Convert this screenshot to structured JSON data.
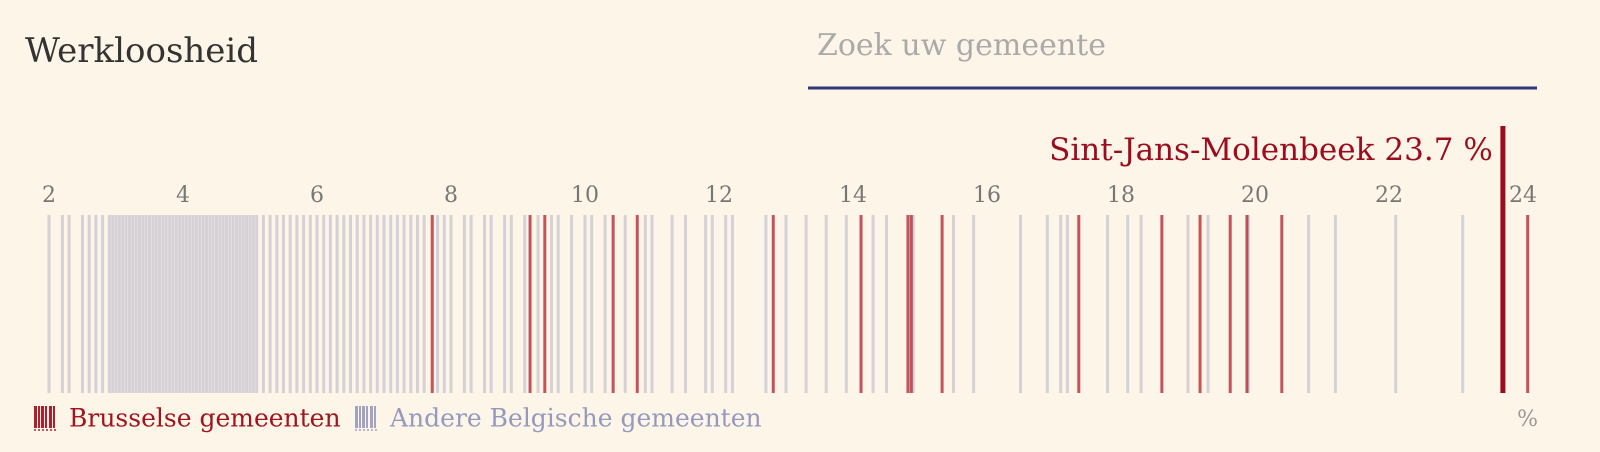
{
  "chart_data": {
    "type": "strip",
    "title": "Werkloosheid",
    "search_placeholder": "Zoek uw gemeente",
    "x_unit": "%",
    "xlim": [
      1.75,
      24.25
    ],
    "xticks": [
      2,
      4,
      6,
      8,
      10,
      12,
      14,
      16,
      18,
      20,
      22,
      24
    ],
    "highlight": {
      "name": "Sint-Jans-Molenbeek",
      "value": 23.7,
      "color": "#9b0d1e"
    },
    "series": [
      {
        "name": "Andere Belgische gemeenten",
        "color": "#7a7fb4",
        "values": [
          2.0,
          2.2,
          2.3,
          2.5,
          2.6,
          2.7,
          2.8,
          2.9,
          2.95,
          3.0,
          3.05,
          3.1,
          3.15,
          3.2,
          3.25,
          3.3,
          3.35,
          3.4,
          3.45,
          3.5,
          3.55,
          3.6,
          3.65,
          3.7,
          3.75,
          3.8,
          3.85,
          3.9,
          3.95,
          4.0,
          4.05,
          4.1,
          4.15,
          4.2,
          4.25,
          4.3,
          4.35,
          4.4,
          4.45,
          4.5,
          4.55,
          4.6,
          4.65,
          4.7,
          4.75,
          4.8,
          4.85,
          4.9,
          4.95,
          5.0,
          5.05,
          5.1,
          5.2,
          5.3,
          5.4,
          5.5,
          5.6,
          5.7,
          5.8,
          5.9,
          6.0,
          6.1,
          6.2,
          6.3,
          6.4,
          6.5,
          6.6,
          6.7,
          6.8,
          6.9,
          7.0,
          7.1,
          7.2,
          7.3,
          7.4,
          7.5,
          7.6,
          7.8,
          7.9,
          8.0,
          8.2,
          8.3,
          8.5,
          8.6,
          8.8,
          8.9,
          9.1,
          9.3,
          9.5,
          9.6,
          9.8,
          10.0,
          10.1,
          10.3,
          10.6,
          10.9,
          11.0,
          11.3,
          11.5,
          11.8,
          11.9,
          12.1,
          12.2,
          12.7,
          13.0,
          13.3,
          13.6,
          13.9,
          14.3,
          14.5,
          14.9,
          15.5,
          15.8,
          16.5,
          16.9,
          17.1,
          17.2,
          17.8,
          18.1,
          18.3,
          19.0,
          19.3,
          19.9,
          20.8,
          21.2,
          22.1,
          23.1
        ]
      },
      {
        "name": "Brusselse gemeenten",
        "color": "#b01e2e",
        "values": [
          7.72,
          9.18,
          9.4,
          10.42,
          10.78,
          12.81,
          14.12,
          14.82,
          14.87,
          15.33,
          17.37,
          18.61,
          19.18,
          19.63,
          19.88,
          20.4,
          23.7,
          24.07
        ]
      }
    ]
  }
}
